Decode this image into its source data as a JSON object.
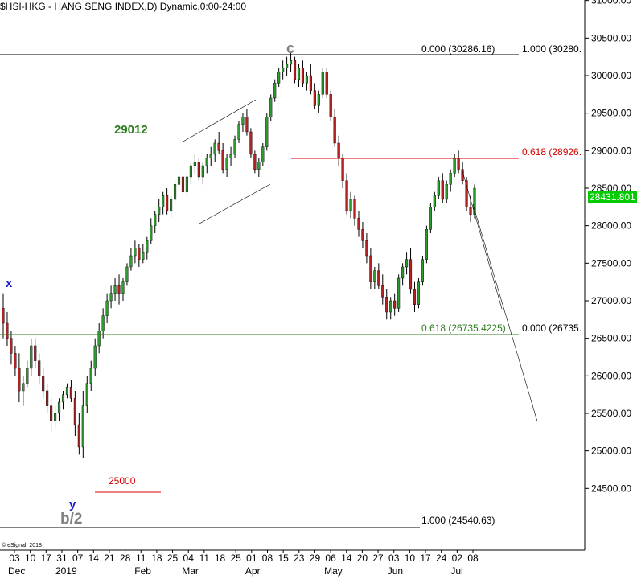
{
  "header": {
    "title": "$HSI-HKG - HANG SENG INDEX,D) Dynamic,0:00-24:00"
  },
  "price_label": "28431.801",
  "copyright": "© eSignal, 2018",
  "colors": {
    "up_candle": "#2f9a2f",
    "down_candle": "#b22222",
    "wick": "#000000",
    "fib_red": "#d40000",
    "fib_green": "#2e7d1e",
    "wave_blue": "#1a1acc",
    "wave_gray": "#808080",
    "price_badge": "#00cc00"
  },
  "annotations": {
    "wave_c": "c",
    "wave_x": "x",
    "wave_y": "y",
    "wave_b2": "b/2",
    "target_29012": "29012",
    "level_25000": "25000",
    "fib_top_left": "0.000 (30286.16)",
    "fib_top_right": "1.000 (30280.",
    "fib_618_red": "0.618 (28926.",
    "fib_618_green": "0.618 (26735.4225)",
    "fib_bottom_right": "0.000 (26735.",
    "fib_bottom_left": "1.000 (24540.63)"
  },
  "chart_data": {
    "type": "candlestick",
    "title": "$HSI-HKG - HANG SENG INDEX,D) Dynamic,0:00-24:00",
    "ylim": [
      24300,
      31050
    ],
    "y_ticks": [
      "31000.00",
      "30500.00",
      "30000.00",
      "29500.00",
      "29000.00",
      "28500.00",
      "28000.00",
      "27500.00",
      "27000.00",
      "26500.00",
      "26000.00",
      "25500.00",
      "25000.00",
      "24500.00"
    ],
    "x_day_ticks": [
      "03",
      "10",
      "17",
      "31",
      "07",
      "14",
      "21",
      "28",
      "11",
      "18",
      "25",
      "04",
      "11",
      "18",
      "25",
      "01",
      "08",
      "15",
      "23",
      "29",
      "06",
      "14",
      "20",
      "27",
      "03",
      "10",
      "17",
      "24",
      "02",
      "08"
    ],
    "x_month_labels": [
      "Dec",
      "2019",
      "Feb",
      "Mar",
      "Apr",
      "May",
      "Jun",
      "Jul"
    ],
    "last_price": 28431.801,
    "fib_levels": [
      {
        "label": "0.000 (30286.16)",
        "value": 30286.16
      },
      {
        "label": "1.000 (30280.",
        "value": 30280
      },
      {
        "label": "0.618 (28926.",
        "value": 28926
      },
      {
        "label": "0.618 (26735.4225)",
        "value": 26735.4225
      },
      {
        "label": "0.000 (26735.",
        "value": 26735
      },
      {
        "label": "1.000 (24540.63)",
        "value": 24540.63
      }
    ],
    "candles": [
      [
        26900,
        27100,
        26500,
        26700
      ],
      [
        26700,
        26850,
        26400,
        26500
      ],
      [
        26500,
        26600,
        26150,
        26300
      ],
      [
        26300,
        26400,
        26000,
        26100
      ],
      [
        26100,
        26300,
        25650,
        25800
      ],
      [
        25800,
        26000,
        25600,
        25900
      ],
      [
        25900,
        26200,
        25850,
        26100
      ],
      [
        26100,
        26500,
        26000,
        26400
      ],
      [
        26400,
        26500,
        26100,
        26200
      ],
      [
        26200,
        26300,
        25900,
        26000
      ],
      [
        26000,
        26100,
        25700,
        25800
      ],
      [
        25800,
        25900,
        25500,
        25600
      ],
      [
        25600,
        25700,
        25250,
        25400
      ],
      [
        25400,
        25600,
        25300,
        25500
      ],
      [
        25500,
        25700,
        25400,
        25650
      ],
      [
        25650,
        25800,
        25550,
        25750
      ],
      [
        25750,
        25900,
        25700,
        25850
      ],
      [
        25850,
        25950,
        25650,
        25700
      ],
      [
        25700,
        25800,
        25200,
        25350
      ],
      [
        25350,
        25500,
        24950,
        25050
      ],
      [
        25050,
        25800,
        24900,
        25600
      ],
      [
        25600,
        26000,
        25500,
        25900
      ],
      [
        25900,
        26200,
        25800,
        26100
      ],
      [
        26100,
        26500,
        26000,
        26400
      ],
      [
        26400,
        26700,
        26300,
        26600
      ],
      [
        26600,
        26900,
        26500,
        26800
      ],
      [
        26800,
        27100,
        26700,
        27000
      ],
      [
        27000,
        27200,
        26900,
        27100
      ],
      [
        27100,
        27300,
        27000,
        27200
      ],
      [
        27200,
        27350,
        26950,
        27100
      ],
      [
        27100,
        27300,
        27000,
        27250
      ],
      [
        27250,
        27500,
        27200,
        27450
      ],
      [
        27450,
        27700,
        27400,
        27600
      ],
      [
        27600,
        27800,
        27500,
        27700
      ],
      [
        27700,
        27750,
        27450,
        27550
      ],
      [
        27550,
        27750,
        27500,
        27650
      ],
      [
        27650,
        27850,
        27550,
        27800
      ],
      [
        27800,
        28100,
        27750,
        28000
      ],
      [
        28000,
        28200,
        27900,
        28150
      ],
      [
        28150,
        28350,
        28050,
        28250
      ],
      [
        28250,
        28450,
        28150,
        28400
      ],
      [
        28400,
        28500,
        28150,
        28200
      ],
      [
        28200,
        28400,
        28100,
        28350
      ],
      [
        28350,
        28600,
        28300,
        28550
      ],
      [
        28550,
        28700,
        28450,
        28650
      ],
      [
        28650,
        28750,
        28400,
        28450
      ],
      [
        28450,
        28700,
        28400,
        28650
      ],
      [
        28650,
        28850,
        28550,
        28800
      ],
      [
        28800,
        28950,
        28700,
        28850
      ],
      [
        28850,
        28900,
        28600,
        28650
      ],
      [
        28650,
        28850,
        28550,
        28800
      ],
      [
        28800,
        28950,
        28700,
        28900
      ],
      [
        28900,
        29050,
        28800,
        28950
      ],
      [
        28950,
        29150,
        28850,
        29100
      ],
      [
        29100,
        29250,
        28950,
        29000
      ],
      [
        29000,
        29100,
        28700,
        28750
      ],
      [
        28750,
        28950,
        28650,
        28900
      ],
      [
        28900,
        29050,
        28800,
        28950
      ],
      [
        28950,
        29200,
        28900,
        29150
      ],
      [
        29150,
        29400,
        29100,
        29350
      ],
      [
        29350,
        29500,
        29250,
        29450
      ],
      [
        29450,
        29550,
        29200,
        29250
      ],
      [
        29250,
        29300,
        28900,
        28950
      ],
      [
        28950,
        29000,
        28700,
        28750
      ],
      [
        28750,
        28900,
        28650,
        28850
      ],
      [
        28850,
        29100,
        28800,
        29050
      ],
      [
        29050,
        29500,
        29000,
        29450
      ],
      [
        29450,
        29750,
        29400,
        29700
      ],
      [
        29700,
        29950,
        29650,
        29900
      ],
      [
        29900,
        30100,
        29850,
        30050
      ],
      [
        30050,
        30200,
        29950,
        30100
      ],
      [
        30100,
        30250,
        30000,
        30150
      ],
      [
        30150,
        30300,
        30050,
        30200
      ],
      [
        30200,
        30250,
        29900,
        29950
      ],
      [
        29950,
        30150,
        29850,
        30100
      ],
      [
        30100,
        30200,
        29850,
        29900
      ],
      [
        29900,
        30050,
        29800,
        30000
      ],
      [
        30000,
        30150,
        29750,
        29800
      ],
      [
        29800,
        29900,
        29550,
        29600
      ],
      [
        29600,
        29800,
        29500,
        29750
      ],
      [
        29750,
        30100,
        29700,
        30050
      ],
      [
        30050,
        30100,
        29700,
        29750
      ],
      [
        29750,
        29800,
        29400,
        29450
      ],
      [
        29450,
        29550,
        29050,
        29100
      ],
      [
        29100,
        29200,
        28800,
        28900
      ],
      [
        28900,
        28950,
        28500,
        28600
      ],
      [
        28600,
        28700,
        28150,
        28200
      ],
      [
        28200,
        28450,
        28100,
        28350
      ],
      [
        28350,
        28400,
        28000,
        28100
      ],
      [
        28100,
        28200,
        27850,
        27950
      ],
      [
        27950,
        28050,
        27700,
        27800
      ],
      [
        27800,
        27900,
        27500,
        27600
      ],
      [
        27600,
        27700,
        27150,
        27250
      ],
      [
        27250,
        27450,
        27150,
        27400
      ],
      [
        27400,
        27500,
        27150,
        27200
      ],
      [
        27200,
        27350,
        26950,
        27050
      ],
      [
        27050,
        27150,
        26750,
        26850
      ],
      [
        26850,
        27050,
        26750,
        27000
      ],
      [
        27000,
        27100,
        26800,
        26900
      ],
      [
        26900,
        27350,
        26850,
        27300
      ],
      [
        27300,
        27500,
        27200,
        27450
      ],
      [
        27450,
        27650,
        27350,
        27550
      ],
      [
        27550,
        27700,
        27100,
        27150
      ],
      [
        27150,
        27250,
        26850,
        26950
      ],
      [
        26950,
        27300,
        26900,
        27250
      ],
      [
        27250,
        27600,
        27200,
        27550
      ],
      [
        27550,
        28000,
        27500,
        27950
      ],
      [
        27950,
        28300,
        27900,
        28250
      ],
      [
        28250,
        28450,
        28200,
        28400
      ],
      [
        28400,
        28650,
        28350,
        28600
      ],
      [
        28600,
        28700,
        28300,
        28350
      ],
      [
        28350,
        28600,
        28300,
        28550
      ],
      [
        28550,
        28750,
        28450,
        28700
      ],
      [
        28700,
        28950,
        28650,
        28900
      ],
      [
        28900,
        29000,
        28700,
        28750
      ],
      [
        28750,
        28850,
        28550,
        28600
      ],
      [
        28600,
        28650,
        28200,
        28250
      ],
      [
        28250,
        28400,
        28050,
        28150
      ],
      [
        28150,
        28550,
        28100,
        28500
      ]
    ]
  }
}
